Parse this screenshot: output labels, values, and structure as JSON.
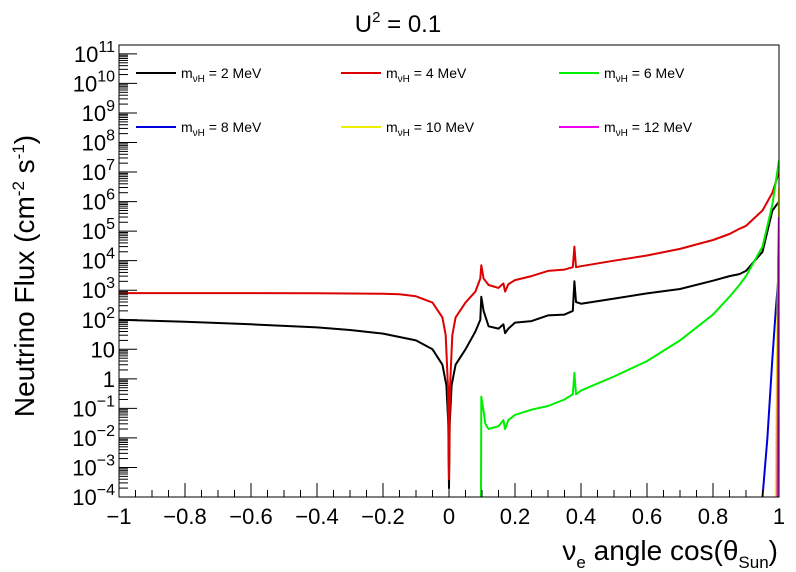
{
  "chart_data": {
    "type": "line",
    "title": "U² = 0.1",
    "title_main": "U",
    "title_sup": "2",
    "title_rest": " = 0.1",
    "ylabel": "Neutrino Flux (cm⁻² s⁻¹)",
    "ylabel_parts": {
      "main": "Neutrino Flux (cm",
      "sup1": "-2",
      "mid": " s",
      "sup2": "-1",
      "end": ")"
    },
    "xlabel": "νe angle cos(θSun)",
    "xlabel_parts": {
      "nu": "ν",
      "nu_sub": "e",
      "mid": " angle cos(θ",
      "theta_sub": "Sun",
      "end": ")"
    },
    "xlim": [
      -1,
      1
    ],
    "ylim": [
      0.0001,
      200000000000
    ],
    "y_scale": "log",
    "grid": false,
    "legend_placement": "top",
    "x_ticks": [
      {
        "v": -1,
        "label": "−1"
      },
      {
        "v": -0.8,
        "label": "−0.8"
      },
      {
        "v": -0.6,
        "label": "−0.6"
      },
      {
        "v": -0.4,
        "label": "−0.4"
      },
      {
        "v": -0.2,
        "label": "−0.2"
      },
      {
        "v": 0,
        "label": "0"
      },
      {
        "v": 0.2,
        "label": "0.2"
      },
      {
        "v": 0.4,
        "label": "0.4"
      },
      {
        "v": 0.6,
        "label": "0.6"
      },
      {
        "v": 0.8,
        "label": "0.8"
      },
      {
        "v": 1,
        "label": "1"
      }
    ],
    "y_ticks": [
      {
        "e": -4,
        "base": "10",
        "exp": "−4"
      },
      {
        "e": -3,
        "base": "10",
        "exp": "−3"
      },
      {
        "e": -2,
        "base": "10",
        "exp": "−2"
      },
      {
        "e": -1,
        "base": "10",
        "exp": "−1"
      },
      {
        "e": 0,
        "base": "1",
        "exp": ""
      },
      {
        "e": 1,
        "base": "10",
        "exp": ""
      },
      {
        "e": 2,
        "base": "10",
        "exp": "2"
      },
      {
        "e": 3,
        "base": "10",
        "exp": "3"
      },
      {
        "e": 4,
        "base": "10",
        "exp": "4"
      },
      {
        "e": 5,
        "base": "10",
        "exp": "5"
      },
      {
        "e": 6,
        "base": "10",
        "exp": "6"
      },
      {
        "e": 7,
        "base": "10",
        "exp": "7"
      },
      {
        "e": 8,
        "base": "10",
        "exp": "8"
      },
      {
        "e": 9,
        "base": "10",
        "exp": "9"
      },
      {
        "e": 10,
        "base": "10",
        "exp": "10"
      },
      {
        "e": 11,
        "base": "10",
        "exp": "11"
      }
    ],
    "series": [
      {
        "name": "mνH = 2 MeV",
        "label_main": "m",
        "label_sub": "νH",
        "label_rest": " = 2 MeV",
        "color": "#000000",
        "points": [
          [
            -1,
            100
          ],
          [
            -0.8,
            85
          ],
          [
            -0.6,
            70
          ],
          [
            -0.4,
            55
          ],
          [
            -0.3,
            45
          ],
          [
            -0.2,
            34
          ],
          [
            -0.1,
            20
          ],
          [
            -0.05,
            10
          ],
          [
            -0.02,
            3
          ],
          [
            -0.008,
            0.6
          ],
          [
            -0.002,
            0.03
          ],
          [
            0,
            0.0002
          ],
          [
            0.002,
            0.03
          ],
          [
            0.008,
            0.6
          ],
          [
            0.02,
            3
          ],
          [
            0.05,
            10
          ],
          [
            0.08,
            40
          ],
          [
            0.095,
            100
          ],
          [
            0.098,
            600
          ],
          [
            0.105,
            200
          ],
          [
            0.12,
            60
          ],
          [
            0.15,
            50
          ],
          [
            0.165,
            70
          ],
          [
            0.17,
            35
          ],
          [
            0.18,
            50
          ],
          [
            0.2,
            80
          ],
          [
            0.25,
            90
          ],
          [
            0.3,
            140
          ],
          [
            0.35,
            150
          ],
          [
            0.375,
            200
          ],
          [
            0.38,
            2000
          ],
          [
            0.385,
            400
          ],
          [
            0.4,
            350
          ],
          [
            0.5,
            520
          ],
          [
            0.6,
            780
          ],
          [
            0.7,
            1100
          ],
          [
            0.8,
            2100
          ],
          [
            0.85,
            3000
          ],
          [
            0.88,
            3500
          ],
          [
            0.9,
            4500
          ],
          [
            0.95,
            20000
          ],
          [
            0.98,
            500000
          ],
          [
            1,
            1000000
          ]
        ]
      },
      {
        "name": "mνH = 4 MeV",
        "label_main": "m",
        "label_sub": "νH",
        "label_rest": " = 4 MeV",
        "color": "#dd0000",
        "points": [
          [
            -1,
            800
          ],
          [
            -0.6,
            800
          ],
          [
            -0.4,
            790
          ],
          [
            -0.2,
            760
          ],
          [
            -0.15,
            730
          ],
          [
            -0.1,
            620
          ],
          [
            -0.05,
            380
          ],
          [
            -0.02,
            120
          ],
          [
            -0.01,
            30
          ],
          [
            -0.003,
            0.5
          ],
          [
            0,
            0.0004
          ],
          [
            0.003,
            0.5
          ],
          [
            0.01,
            30
          ],
          [
            0.02,
            120
          ],
          [
            0.05,
            380
          ],
          [
            0.08,
            900
          ],
          [
            0.095,
            2500
          ],
          [
            0.098,
            7000
          ],
          [
            0.105,
            2500
          ],
          [
            0.12,
            1500
          ],
          [
            0.15,
            1200
          ],
          [
            0.165,
            1700
          ],
          [
            0.17,
            900
          ],
          [
            0.18,
            1600
          ],
          [
            0.2,
            2200
          ],
          [
            0.25,
            3000
          ],
          [
            0.3,
            4500
          ],
          [
            0.35,
            5000
          ],
          [
            0.375,
            6000
          ],
          [
            0.38,
            30000
          ],
          [
            0.385,
            6000
          ],
          [
            0.4,
            6500
          ],
          [
            0.5,
            10000
          ],
          [
            0.6,
            15000
          ],
          [
            0.7,
            25000
          ],
          [
            0.8,
            50000
          ],
          [
            0.85,
            80000
          ],
          [
            0.88,
            120000
          ],
          [
            0.9,
            150000
          ],
          [
            0.95,
            500000
          ],
          [
            0.98,
            2000000
          ],
          [
            1,
            10000000
          ]
        ]
      },
      {
        "name": "mνH = 6 MeV",
        "label_main": "m",
        "label_sub": "νH",
        "label_rest": " = 6 MeV",
        "color": "#00ee00",
        "points": [
          [
            0.097,
            0.0001
          ],
          [
            0.098,
            0.25
          ],
          [
            0.105,
            0.08
          ],
          [
            0.11,
            0.03
          ],
          [
            0.12,
            0.02
          ],
          [
            0.15,
            0.025
          ],
          [
            0.165,
            0.04
          ],
          [
            0.17,
            0.02
          ],
          [
            0.18,
            0.04
          ],
          [
            0.2,
            0.06
          ],
          [
            0.25,
            0.09
          ],
          [
            0.3,
            0.12
          ],
          [
            0.35,
            0.2
          ],
          [
            0.375,
            0.3
          ],
          [
            0.38,
            1.6
          ],
          [
            0.385,
            0.3
          ],
          [
            0.4,
            0.4
          ],
          [
            0.5,
            1.2
          ],
          [
            0.6,
            4
          ],
          [
            0.7,
            20
          ],
          [
            0.8,
            150
          ],
          [
            0.85,
            600
          ],
          [
            0.88,
            1500
          ],
          [
            0.9,
            3000
          ],
          [
            0.95,
            30000
          ],
          [
            0.98,
            800000
          ],
          [
            1,
            25000000
          ]
        ]
      },
      {
        "name": "mνH = 8 MeV",
        "label_main": "m",
        "label_sub": "νH",
        "label_rest": " = 8 MeV",
        "color": "#0000dd",
        "points": [
          [
            0.95,
            0.0001
          ],
          [
            0.965,
            0.01
          ],
          [
            0.98,
            5
          ],
          [
            0.99,
            200
          ],
          [
            1,
            5000
          ]
        ]
      },
      {
        "name": "mνH = 10 MeV",
        "label_main": "m",
        "label_sub": "νH",
        "label_rest": " = 10 MeV",
        "color": "#eeee00",
        "points": [
          [
            0.99,
            0.0001
          ],
          [
            0.995,
            100
          ],
          [
            1,
            3000000
          ]
        ]
      },
      {
        "name": "mνH = 12 MeV",
        "label_main": "m",
        "label_sub": "νH",
        "label_rest": " = 12 MeV",
        "color": "#ee00ee",
        "points": [
          [
            0.995,
            0.0001
          ],
          [
            0.998,
            10000
          ],
          [
            1,
            300000
          ]
        ]
      }
    ]
  }
}
